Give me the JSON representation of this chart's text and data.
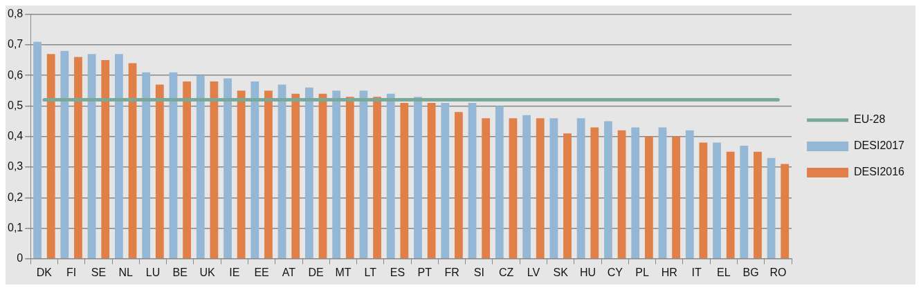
{
  "chart_data": {
    "type": "bar",
    "categories": [
      "DK",
      "FI",
      "SE",
      "NL",
      "LU",
      "BE",
      "UK",
      "IE",
      "EE",
      "AT",
      "DE",
      "MT",
      "LT",
      "ES",
      "PT",
      "FR",
      "SI",
      "CZ",
      "LV",
      "SK",
      "HU",
      "CY",
      "PL",
      "HR",
      "IT",
      "EL",
      "BG",
      "RO"
    ],
    "series": [
      {
        "name": "DESI2017",
        "color": "#95b7d6",
        "values": [
          0.71,
          0.68,
          0.67,
          0.67,
          0.61,
          0.61,
          0.6,
          0.59,
          0.58,
          0.57,
          0.56,
          0.55,
          0.55,
          0.54,
          0.53,
          0.51,
          0.51,
          0.5,
          0.47,
          0.46,
          0.46,
          0.45,
          0.43,
          0.43,
          0.42,
          0.38,
          0.37,
          0.33
        ]
      },
      {
        "name": "DESI2016",
        "color": "#e07f48",
        "values": [
          0.67,
          0.66,
          0.65,
          0.64,
          0.57,
          0.58,
          0.58,
          0.55,
          0.55,
          0.54,
          0.54,
          0.53,
          0.53,
          0.51,
          0.51,
          0.48,
          0.46,
          0.46,
          0.46,
          0.41,
          0.43,
          0.42,
          0.4,
          0.4,
          0.38,
          0.35,
          0.35,
          0.31
        ]
      },
      {
        "name": "EU-28",
        "type": "line",
        "color": "#7aa89a",
        "values": [
          0.52,
          0.52,
          0.52,
          0.52,
          0.52,
          0.52,
          0.52,
          0.52,
          0.52,
          0.52,
          0.52,
          0.52,
          0.52,
          0.52,
          0.52,
          0.52,
          0.52,
          0.52,
          0.52,
          0.52,
          0.52,
          0.52,
          0.52,
          0.52,
          0.52,
          0.52,
          0.52,
          0.52
        ]
      }
    ],
    "ylim": [
      0,
      0.8
    ],
    "yticks": [
      0,
      {
        "value": 0.1,
        "label": "0,1"
      },
      {
        "value": 0.2,
        "label": "0,2"
      },
      {
        "value": 0.3,
        "label": "0,3"
      },
      {
        "value": 0.4,
        "label": "0,4"
      },
      {
        "value": 0.5,
        "label": "0,5"
      },
      {
        "value": 0.6,
        "label": "0,6"
      },
      {
        "value": 0.7,
        "label": "0,7"
      },
      {
        "value": 0.8,
        "label": "0,8"
      }
    ],
    "grid": "y",
    "legend": "right",
    "marker": "none"
  }
}
